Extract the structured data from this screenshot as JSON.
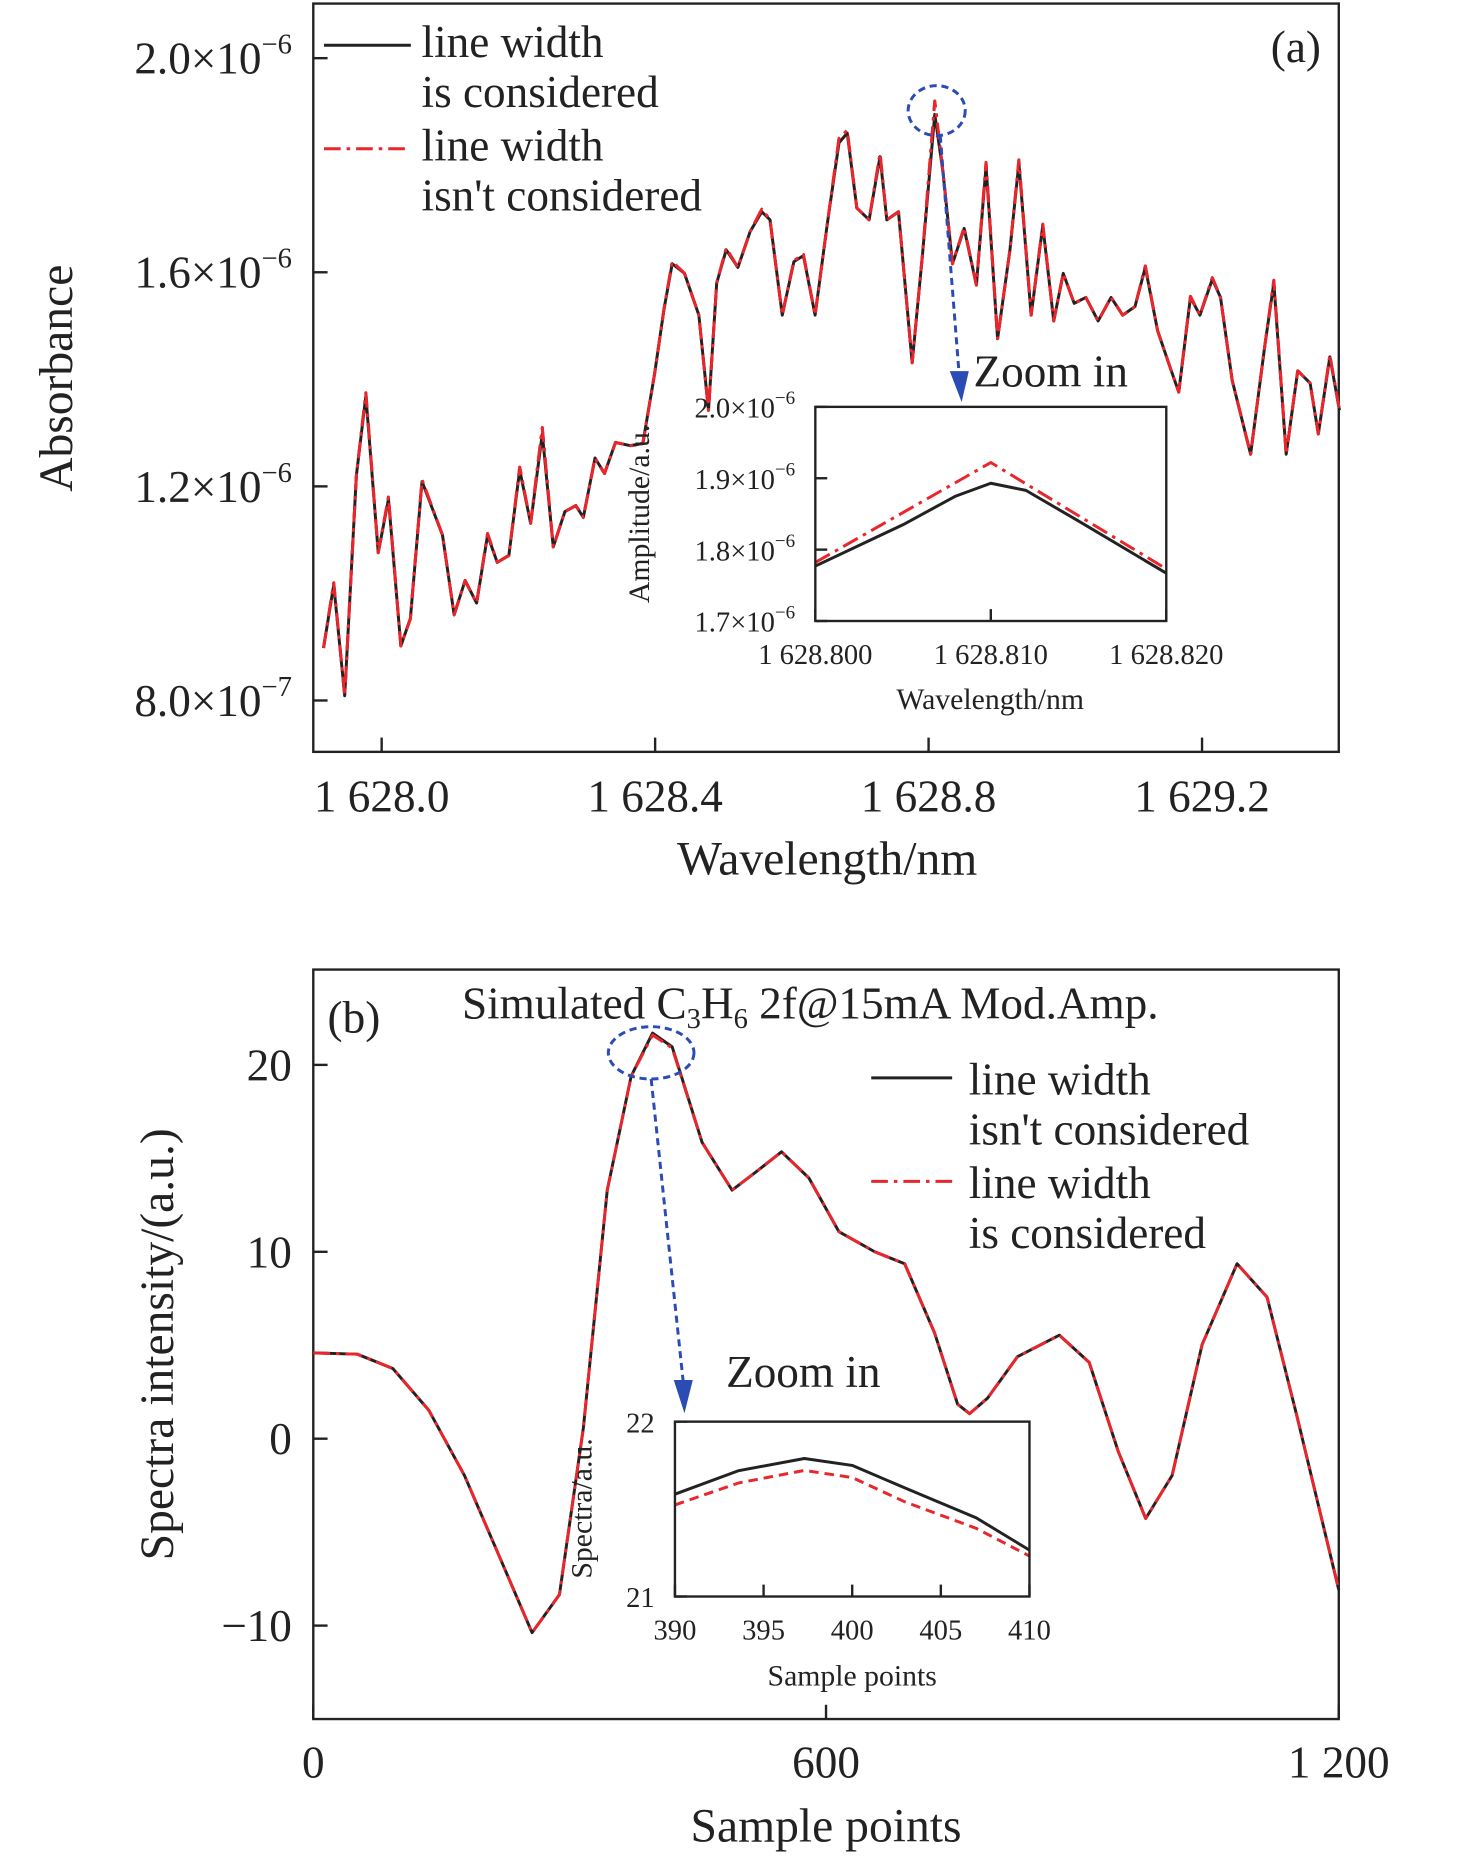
{
  "colors": {
    "black": "#222222",
    "red": "#e8262b",
    "annotation": "#2b4bb5"
  },
  "chart_data": [
    {
      "type": "line",
      "panel_label": "(a)",
      "xlabel": "Wavelength/nm",
      "ylabel": "Absorbance",
      "xlim": [
        1627.9,
        1629.4
      ],
      "ylim_e6": [
        0.704,
        2.102
      ],
      "xticks": [
        {
          "v": 1628.0,
          "label": "1 628.0"
        },
        {
          "v": 1628.4,
          "label": "1 628.4"
        },
        {
          "v": 1628.8,
          "label": "1 628.8"
        },
        {
          "v": 1629.2,
          "label": "1 629.2"
        }
      ],
      "yticks": [
        {
          "v": 0.8,
          "base": "8.0×10",
          "exp": "−7"
        },
        {
          "v": 1.2,
          "base": "1.2×10",
          "exp": "−6"
        },
        {
          "v": 1.6,
          "base": "1.6×10",
          "exp": "−6"
        },
        {
          "v": 2.0,
          "base": "2.0×10",
          "exp": "−6"
        }
      ],
      "y_unit_note": "y values in units of 1e-6",
      "x": [
        1627.915,
        1627.93,
        1627.946,
        1627.963,
        1627.977,
        1627.995,
        1628.01,
        1628.028,
        1628.042,
        1628.059,
        1628.089,
        1628.106,
        1628.122,
        1628.139,
        1628.155,
        1628.169,
        1628.186,
        1628.202,
        1628.218,
        1628.235,
        1628.251,
        1628.268,
        1628.284,
        1628.295,
        1628.312,
        1628.326,
        1628.342,
        1628.364,
        1628.382,
        1628.399,
        1628.413,
        1628.425,
        1628.443,
        1628.464,
        1628.478,
        1628.49,
        1628.504,
        1628.521,
        1628.539,
        1628.556,
        1628.568,
        1628.586,
        1628.603,
        1628.617,
        1628.634,
        1628.652,
        1628.669,
        1628.681,
        1628.695,
        1628.713,
        1628.729,
        1628.739,
        1628.756,
        1628.776,
        1628.791,
        1628.809,
        1628.821,
        1628.835,
        1628.852,
        1628.87,
        1628.884,
        1628.901,
        1628.919,
        1628.932,
        1628.95,
        1628.967,
        1628.983,
        1628.997,
        1629.013,
        1629.03,
        1629.048,
        1629.067,
        1629.084,
        1629.102,
        1629.117,
        1629.135,
        1629.154,
        1629.166,
        1629.183,
        1629.197,
        1629.215,
        1629.227,
        1629.244,
        1629.271,
        1629.292,
        1629.305,
        1629.323,
        1629.34,
        1629.358,
        1629.37,
        1629.387,
        1629.401
      ],
      "series": [
        {
          "name": "line width is considered",
          "legend": [
            "line width",
            "is considered"
          ],
          "color": "#222222",
          "style": "solid",
          "y": [
            0.898,
            1.016,
            0.809,
            1.22,
            1.369,
            1.076,
            1.176,
            0.902,
            0.953,
            1.209,
            1.109,
            0.96,
            1.024,
            0.982,
            1.109,
            1.058,
            1.071,
            1.231,
            1.131,
            1.298,
            1.087,
            1.153,
            1.164,
            1.142,
            1.253,
            1.224,
            1.282,
            1.276,
            1.28,
            1.409,
            1.531,
            1.616,
            1.598,
            1.52,
            1.342,
            1.58,
            1.642,
            1.609,
            1.676,
            1.713,
            1.698,
            1.52,
            1.62,
            1.631,
            1.52,
            1.691,
            1.842,
            1.86,
            1.72,
            1.698,
            1.816,
            1.698,
            1.713,
            1.431,
            1.631,
            1.895,
            1.787,
            1.616,
            1.682,
            1.576,
            1.798,
            1.476,
            1.642,
            1.804,
            1.52,
            1.687,
            1.509,
            1.598,
            1.542,
            1.553,
            1.509,
            1.553,
            1.52,
            1.536,
            1.609,
            1.491,
            1.42,
            1.376,
            1.553,
            1.52,
            1.587,
            1.553,
            1.398,
            1.26,
            1.464,
            1.58,
            1.26,
            1.416,
            1.393,
            1.298,
            1.442,
            1.342
          ]
        },
        {
          "name": "line width isn't considered",
          "legend": [
            "line width",
            "isn't considered"
          ],
          "color": "#e8262b",
          "style": "dash-dot",
          "y": [
            0.898,
            1.02,
            0.809,
            1.22,
            1.375,
            1.076,
            1.18,
            0.902,
            0.953,
            1.212,
            1.109,
            0.96,
            1.024,
            0.982,
            1.112,
            1.058,
            1.071,
            1.236,
            1.131,
            1.31,
            1.087,
            1.153,
            1.164,
            1.142,
            1.253,
            1.224,
            1.282,
            1.276,
            1.28,
            1.409,
            1.531,
            1.62,
            1.598,
            1.52,
            1.342,
            1.58,
            1.645,
            1.609,
            1.676,
            1.718,
            1.698,
            1.52,
            1.622,
            1.633,
            1.52,
            1.691,
            1.85,
            1.865,
            1.72,
            1.698,
            1.822,
            1.698,
            1.713,
            1.431,
            1.631,
            1.92,
            1.787,
            1.616,
            1.684,
            1.576,
            1.805,
            1.476,
            1.642,
            1.81,
            1.52,
            1.69,
            1.509,
            1.598,
            1.542,
            1.553,
            1.509,
            1.553,
            1.52,
            1.536,
            1.612,
            1.491,
            1.42,
            1.376,
            1.555,
            1.52,
            1.59,
            1.553,
            1.398,
            1.26,
            1.464,
            1.585,
            1.26,
            1.416,
            1.393,
            1.298,
            1.445,
            1.342
          ]
        }
      ],
      "annotation": "Zoom in",
      "inset": {
        "xlabel": "Wavelength/nm",
        "ylabel": "Amplitude/a.u.",
        "xlim": [
          1628.8,
          1628.82
        ],
        "ylim_e6": [
          1.7,
          2.0
        ],
        "xticks": [
          {
            "v": 1628.8,
            "label": "1 628.800"
          },
          {
            "v": 1628.81,
            "label": "1 628.810"
          },
          {
            "v": 1628.82,
            "label": "1 628.820"
          }
        ],
        "yticks": [
          {
            "v": 1.7,
            "base": "1.7×10",
            "exp": "−6"
          },
          {
            "v": 1.8,
            "base": "1.8×10",
            "exp": "−6"
          },
          {
            "v": 1.9,
            "base": "1.9×10",
            "exp": "−6"
          },
          {
            "v": 2.0,
            "base": "2.0×10",
            "exp": "−6"
          }
        ],
        "series": [
          {
            "name": "line width is considered",
            "color": "#222222",
            "x": [
              1628.8,
              1628.805,
              1628.808,
              1628.81,
              1628.812,
              1628.815,
              1628.82
            ],
            "y": [
              1.777,
              1.835,
              1.875,
              1.893,
              1.883,
              1.84,
              1.767
            ]
          },
          {
            "name": "line width isn't considered",
            "color": "#e8262b",
            "x": [
              1628.8,
              1628.81,
              1628.82
            ],
            "y": [
              1.782,
              1.922,
              1.773
            ]
          }
        ]
      }
    },
    {
      "type": "line",
      "panel_label": "(b)",
      "title_parts": [
        "Simulated C",
        "3",
        "H",
        "6",
        " 2f@15mA Mod.Amp."
      ],
      "xlabel": "Sample points",
      "ylabel": "Spectra intensity/(a.u.)",
      "xlim": [
        0,
        1200
      ],
      "ylim": [
        -15.0,
        25.1
      ],
      "xticks": [
        {
          "v": 0,
          "label": "0"
        },
        {
          "v": 600,
          "label": "600"
        },
        {
          "v": 1200,
          "label": "1 200"
        }
      ],
      "yticks": [
        {
          "v": -10,
          "label": "−10"
        },
        {
          "v": 0,
          "label": "0"
        },
        {
          "v": 10,
          "label": "10"
        },
        {
          "v": 20,
          "label": "20"
        }
      ],
      "x": [
        0,
        51.5,
        93,
        135,
        177,
        219,
        256,
        288,
        316,
        344,
        372,
        397,
        420,
        455,
        490,
        518,
        548,
        580,
        615,
        657,
        692,
        727,
        754,
        768,
        789,
        824,
        873,
        908,
        942,
        974,
        1005,
        1040,
        1081,
        1116,
        1151,
        1200
      ],
      "series": [
        {
          "name": "line width isn't considered",
          "legend": [
            "line width",
            "isn't considered"
          ],
          "color": "#222222",
          "style": "solid",
          "y": [
            4.59,
            4.52,
            3.76,
            1.53,
            -1.97,
            -6.43,
            -10.38,
            -8.34,
            0.57,
            13.3,
            19.4,
            21.7,
            20.96,
            15.86,
            13.3,
            14.27,
            15.35,
            13.95,
            11.08,
            10.0,
            9.36,
            5.67,
            1.85,
            1.34,
            2.17,
            4.39,
            5.54,
            4.08,
            -0.7,
            -4.27,
            -1.97,
            5.03,
            9.36,
            7.58,
            1.21,
            -8.09
          ]
        },
        {
          "name": "line width is considered",
          "legend": [
            "line width",
            "is considered"
          ],
          "color": "#e8262b",
          "style": "dash-dot",
          "y": [
            4.59,
            4.52,
            3.76,
            1.53,
            -1.97,
            -6.43,
            -10.38,
            -8.34,
            0.57,
            13.3,
            19.4,
            21.6,
            20.9,
            15.86,
            13.3,
            14.27,
            15.35,
            13.95,
            11.08,
            10.0,
            9.36,
            5.67,
            1.85,
            1.34,
            2.17,
            4.39,
            5.54,
            4.08,
            -0.7,
            -4.27,
            -1.97,
            5.03,
            9.36,
            7.58,
            1.21,
            -8.09
          ]
        }
      ],
      "annotation": "Zoom in",
      "inset": {
        "xlabel": "Sample points",
        "ylabel": "Spectra/a.u.",
        "xlim": [
          390,
          410
        ],
        "ylim": [
          21,
          22
        ],
        "xticks": [
          {
            "v": 390,
            "label": "390"
          },
          {
            "v": 395,
            "label": "395"
          },
          {
            "v": 400,
            "label": "400"
          },
          {
            "v": 405,
            "label": "405"
          },
          {
            "v": 410,
            "label": "410"
          }
        ],
        "yticks": [
          {
            "v": 21,
            "label": "21"
          },
          {
            "v": 22,
            "label": "22"
          }
        ],
        "series": [
          {
            "name": "line width isn't considered",
            "color": "#222222",
            "x": [
              390,
              393.6,
              397.3,
              400,
              403,
              407,
              410
            ],
            "y": [
              21.585,
              21.72,
              21.789,
              21.75,
              21.62,
              21.45,
              21.265
            ]
          },
          {
            "name": "line width is considered",
            "color": "#e8262b",
            "x": [
              390,
              393.6,
              397.3,
              400,
              403,
              407,
              410
            ],
            "y": [
              21.524,
              21.65,
              21.721,
              21.68,
              21.54,
              21.39,
              21.231
            ]
          }
        ]
      }
    }
  ]
}
